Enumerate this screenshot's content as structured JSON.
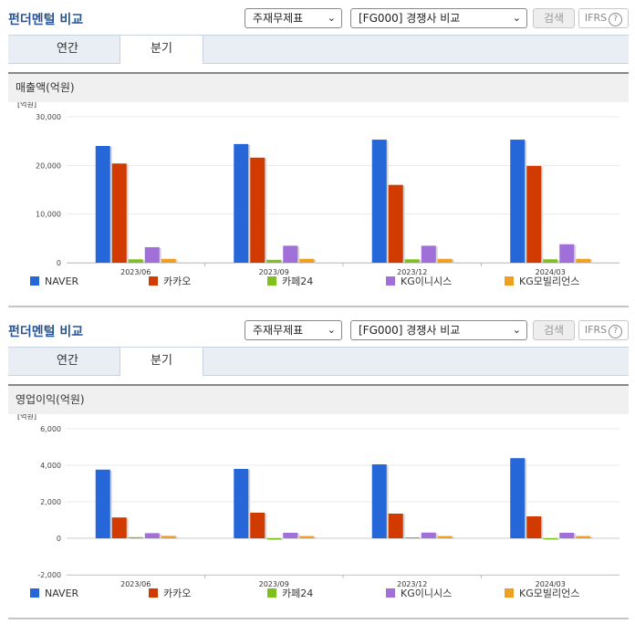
{
  "panels": [
    {
      "title": "펀더멘털 비교",
      "select_report": "주재무제표",
      "select_compare": "[FG000] 경쟁사 비교",
      "search_label": "검색",
      "ifrs_label": "IFRS",
      "ifrs_help": "?",
      "tabs": [
        {
          "label": "연간"
        },
        {
          "label": "분기"
        }
      ],
      "chart_title": "매출액(억원)"
    },
    {
      "title": "펀더멘털 비교",
      "select_report": "주재무제표",
      "select_compare": "[FG000] 경쟁사 비교",
      "search_label": "검색",
      "ifrs_label": "IFRS",
      "ifrs_help": "?",
      "tabs": [
        {
          "label": "연간"
        },
        {
          "label": "분기"
        }
      ],
      "chart_title": "영업이익(억원)"
    }
  ],
  "chart_data": [
    {
      "type": "bar",
      "unit_label": "[억원]",
      "categories": [
        "2023/06",
        "2023/09",
        "2023/12",
        "2024/03"
      ],
      "yticks": [
        "30,000",
        "20,000",
        "10,000",
        "0"
      ],
      "ytick_values": [
        30000,
        20000,
        10000,
        0
      ],
      "ylim": [
        0,
        30000
      ],
      "grid": true,
      "legend_position": "bottom",
      "series": [
        {
          "name": "NAVER",
          "color": "#2566d9",
          "values": [
            24000,
            24400,
            25300,
            25300
          ]
        },
        {
          "name": "카카오",
          "color": "#d23b00",
          "values": [
            20400,
            21600,
            16000,
            19900
          ]
        },
        {
          "name": "카페24",
          "color": "#7fbf1f",
          "values": [
            700,
            600,
            700,
            700
          ]
        },
        {
          "name": "KG이니시스",
          "color": "#a070d8",
          "values": [
            3200,
            3500,
            3500,
            3800
          ]
        },
        {
          "name": "KG모빌리언스",
          "color": "#f0a020",
          "values": [
            800,
            800,
            800,
            800
          ]
        }
      ]
    },
    {
      "type": "bar",
      "unit_label": "[억원]",
      "categories": [
        "2023/06",
        "2023/09",
        "2023/12",
        "2024/03"
      ],
      "yticks": [
        "6,000",
        "4,000",
        "2,000",
        "0",
        "-2,000"
      ],
      "ytick_values": [
        6000,
        4000,
        2000,
        0,
        -2000
      ],
      "ylim": [
        -2000,
        6000
      ],
      "grid": true,
      "legend_position": "bottom",
      "series": [
        {
          "name": "NAVER",
          "color": "#2566d9",
          "values": [
            3760,
            3800,
            4050,
            4390
          ]
        },
        {
          "name": "카카오",
          "color": "#d23b00",
          "values": [
            1140,
            1400,
            1350,
            1200
          ]
        },
        {
          "name": "카페24",
          "color": "#7fbf1f",
          "values": [
            60,
            -60,
            50,
            0
          ]
        },
        {
          "name": "KG이니시스",
          "color": "#a070d8",
          "values": [
            280,
            300,
            310,
            300
          ]
        },
        {
          "name": "KG모빌리언스",
          "color": "#f0a020",
          "values": [
            130,
            120,
            120,
            120
          ]
        }
      ]
    }
  ]
}
